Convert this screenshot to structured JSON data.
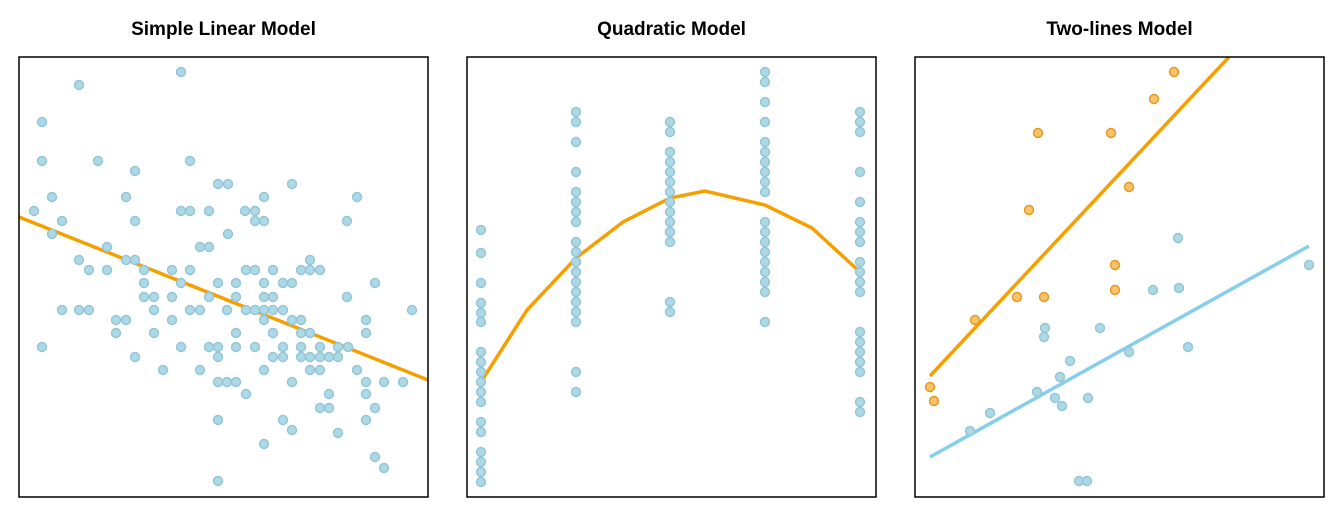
{
  "chart_data": [
    {
      "type": "scatter",
      "title": "Simple Linear Model",
      "xlim": [
        0,
        409
      ],
      "ylim": [
        0,
        440
      ],
      "series": [
        {
          "color": "#add8e6",
          "edgecolor": "#93c5d6",
          "x": [
            162,
            60,
            23,
            23,
            79,
            171,
            116,
            273,
            199,
            209,
            33,
            107,
            245,
            338,
            15,
            162,
            171,
            190,
            226,
            236,
            43,
            116,
            236,
            245,
            328,
            33,
            209,
            181,
            190,
            88,
            60,
            107,
            116,
            70,
            88,
            125,
            153,
            171,
            227,
            236,
            254,
            282,
            291,
            291,
            301,
            125,
            162,
            199,
            217,
            245,
            264,
            273,
            125,
            135,
            153,
            190,
            217,
            245,
            254,
            328,
            356,
            43,
            60,
            70,
            135,
            171,
            181,
            208,
            227,
            236,
            245,
            254,
            264,
            393,
            97,
            107,
            153,
            245,
            273,
            282,
            347,
            97,
            135,
            217,
            254,
            282,
            291,
            347,
            23,
            116,
            162,
            190,
            199,
            217,
            236,
            264,
            282,
            301,
            319,
            329,
            199,
            254,
            264,
            282,
            291,
            301,
            310,
            319,
            144,
            181,
            245,
            291,
            301,
            338,
            199,
            208,
            217,
            273,
            347,
            365,
            384,
            227,
            310,
            347,
            301,
            310,
            356,
            199,
            264,
            347,
            273,
            319,
            245,
            356,
            365,
            199
          ],
          "values": [
            425,
            412,
            375,
            336,
            336,
            336,
            326,
            313,
            313,
            313,
            300,
            300,
            300,
            300,
            286,
            286,
            286,
            286,
            286,
            286,
            276,
            276,
            276,
            276,
            276,
            263,
            263,
            250,
            250,
            250,
            237,
            237,
            237,
            227,
            227,
            227,
            227,
            227,
            227,
            227,
            227,
            227,
            237,
            227,
            227,
            214,
            214,
            214,
            214,
            214,
            214,
            214,
            200,
            200,
            200,
            200,
            200,
            200,
            200,
            200,
            214,
            187,
            187,
            187,
            187,
            187,
            187,
            187,
            187,
            187,
            187,
            187,
            187,
            187,
            177,
            177,
            177,
            177,
            177,
            177,
            177,
            164,
            164,
            164,
            164,
            164,
            164,
            164,
            150,
            140,
            150,
            150,
            150,
            150,
            150,
            150,
            150,
            150,
            150,
            150,
            140,
            140,
            140,
            140,
            140,
            140,
            140,
            140,
            127,
            127,
            127,
            127,
            127,
            127,
            115,
            115,
            115,
            115,
            115,
            115,
            115,
            103,
            103,
            103,
            89,
            89,
            89,
            77,
            77,
            77,
            67,
            64,
            53,
            40,
            29,
            16
          ]
        }
      ],
      "fits": [
        {
          "color": "#f5a000",
          "x": [
            0,
            409
          ],
          "values": [
            280,
            117
          ]
        }
      ]
    },
    {
      "type": "scatter",
      "title": "Quadratic Model",
      "xlim": [
        0,
        409
      ],
      "ylim": [
        0,
        440
      ],
      "series": [
        {
          "color": "#add8e6",
          "edgecolor": "#93c5d6",
          "x": [
            14,
            14,
            14,
            14,
            14,
            14,
            14,
            14,
            14,
            14,
            14,
            14,
            14,
            14,
            14,
            14,
            14,
            14,
            109,
            109,
            109,
            109,
            109,
            109,
            109,
            109,
            109,
            109,
            109,
            109,
            109,
            109,
            109,
            109,
            109,
            109,
            109,
            203,
            203,
            203,
            203,
            203,
            203,
            203,
            203,
            203,
            203,
            203,
            203,
            203,
            203,
            298,
            298,
            298,
            298,
            298,
            298,
            298,
            298,
            298,
            298,
            298,
            298,
            298,
            298,
            298,
            298,
            298,
            298,
            298,
            393,
            393,
            393,
            393,
            393,
            393,
            393,
            393,
            393,
            393,
            393,
            393,
            393,
            393,
            393,
            393,
            393,
            393,
            393
          ],
          "values": [
            267,
            244,
            214,
            194,
            184,
            175,
            145,
            135,
            125,
            115,
            105,
            95,
            75,
            65,
            45,
            35,
            25,
            15,
            385,
            375,
            355,
            325,
            305,
            295,
            285,
            275,
            255,
            245,
            235,
            225,
            215,
            205,
            195,
            185,
            175,
            125,
            105,
            375,
            365,
            345,
            335,
            325,
            315,
            305,
            295,
            285,
            275,
            265,
            255,
            195,
            185,
            425,
            415,
            395,
            375,
            355,
            345,
            335,
            325,
            315,
            305,
            275,
            265,
            255,
            245,
            235,
            225,
            215,
            205,
            175,
            385,
            375,
            365,
            325,
            295,
            275,
            265,
            255,
            235,
            225,
            215,
            205,
            165,
            155,
            145,
            135,
            125,
            95,
            85
          ]
        }
      ],
      "fits": [
        {
          "color": "#f5a000",
          "x": [
            14,
            60,
            109,
            156,
            203,
            238,
            298,
            345,
            393
          ],
          "values": [
            115,
            187,
            239,
            275,
            299,
            306,
            292,
            269,
            225
          ]
        }
      ]
    },
    {
      "type": "scatter",
      "title": "Two-lines Model",
      "xlim": [
        0,
        409
      ],
      "ylim": [
        0,
        440
      ],
      "series": [
        {
          "color": "#f7c36b",
          "edgecolor": "#e8961e",
          "x": [
            15,
            19,
            60,
            102,
            114,
            123,
            129,
            196,
            200,
            200,
            214,
            239,
            259
          ],
          "values": [
            110,
            96,
            177,
            200,
            287,
            364,
            200,
            364,
            232,
            207,
            310,
            398,
            425
          ]
        },
        {
          "color": "#add8e6",
          "edgecolor": "#93c5d6",
          "x": [
            55,
            75,
            122,
            129,
            130,
            140,
            145,
            147,
            155,
            164,
            172,
            173,
            185,
            214,
            238,
            263,
            264,
            273,
            394
          ],
          "values": [
            66,
            84,
            105,
            160,
            169,
            99,
            120,
            91,
            136,
            16,
            16,
            99,
            169,
            145,
            207,
            259,
            209,
            150,
            232
          ]
        }
      ],
      "fits": [
        {
          "color": "#f5a000",
          "x": [
            15,
            314
          ],
          "values": [
            121,
            440
          ]
        },
        {
          "color": "#87ceeb",
          "x": [
            15,
            394
          ],
          "values": [
            40,
            251
          ]
        }
      ]
    }
  ]
}
